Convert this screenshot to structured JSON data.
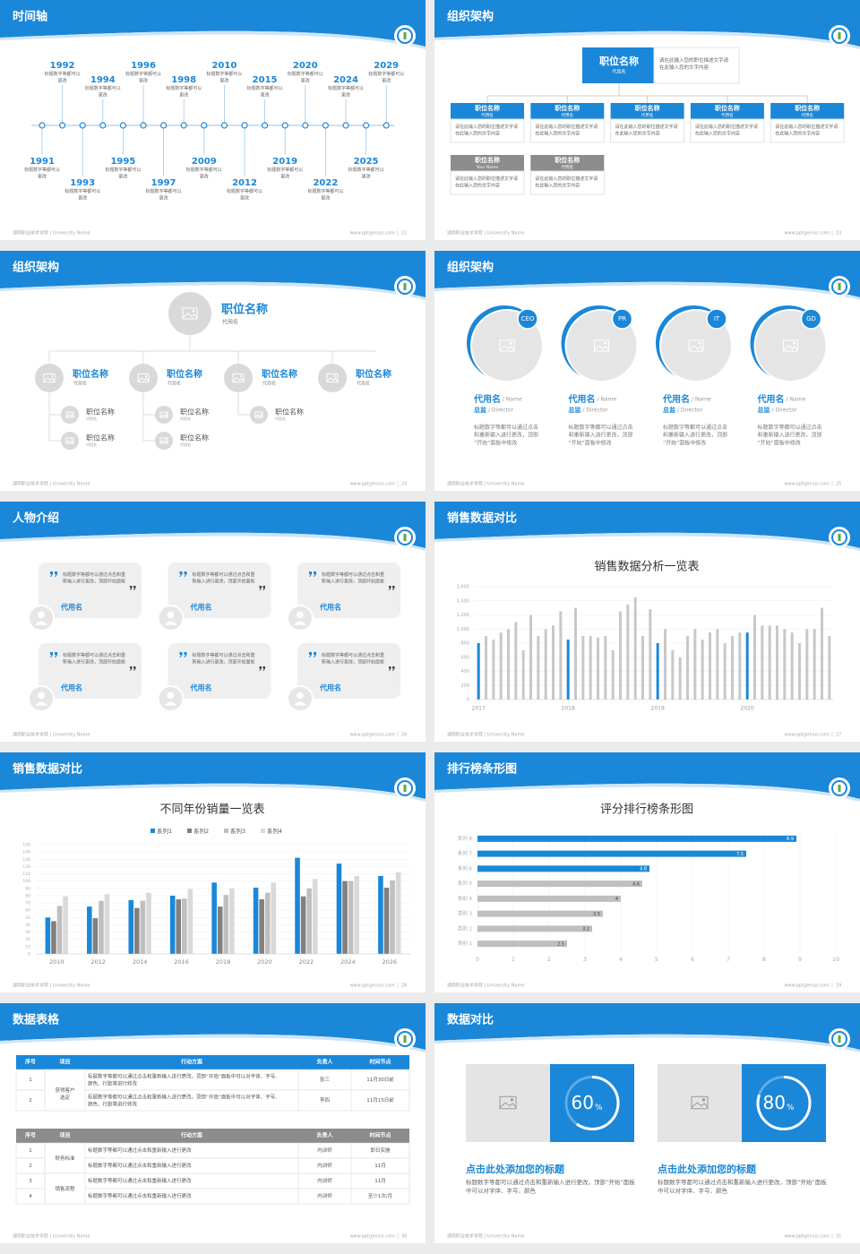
{
  "footer": {
    "school": "湖南职业技术学院 | University Name",
    "site": "www.pptgenius.com"
  },
  "slides": [
    {
      "title": "时间轴",
      "page": "22",
      "items": [
        {
          "year": "1991",
          "text": "标题数字等都可以更改"
        },
        {
          "year": "1992",
          "text": "标题数字等都可以更改"
        },
        {
          "year": "1993",
          "text": "标题数字等都可以更改"
        },
        {
          "year": "1994",
          "text": "标题数字等都可以更改"
        },
        {
          "year": "1995",
          "text": "标题数字等都可以更改"
        },
        {
          "year": "1996",
          "text": "标题数字等都可以更改"
        },
        {
          "year": "1997",
          "text": "标题数字等都可以更改"
        },
        {
          "year": "1998",
          "text": "标题数字等都可以更改"
        },
        {
          "year": "2009",
          "text": "标题数字等都可以更改"
        },
        {
          "year": "2010",
          "text": "标题数字等都可以更改"
        },
        {
          "year": "2012",
          "text": "标题数字等都可以更改"
        },
        {
          "year": "2015",
          "text": "标题数字等都可以更改"
        },
        {
          "year": "2019",
          "text": "标题数字等都可以更改"
        },
        {
          "year": "2020",
          "text": "标题数字等都可以更改"
        },
        {
          "year": "2022",
          "text": "标题数字等都可以更改"
        },
        {
          "year": "2024",
          "text": "标题数字等都可以更改"
        },
        {
          "year": "2025",
          "text": "标题数字等都可以更改"
        },
        {
          "year": "2029",
          "text": "标题数字等都可以更改"
        }
      ]
    },
    {
      "title": "组织架构",
      "page": "23",
      "top": {
        "title": "职位名称",
        "sub": "代用名",
        "desc": "请在此输入您的职位描述文字请在此输入您的文字内容"
      },
      "boxes": [
        {
          "title": "职位名称",
          "sub": "代用名",
          "desc": "请在此输入您的职位描述文字请在此输入您的文字内容",
          "color": "#1a87d9"
        },
        {
          "title": "职位名称",
          "sub": "代用名",
          "desc": "请在此输入您的职位描述文字请在此输入您的文字内容",
          "color": "#1a87d9"
        },
        {
          "title": "职位名称",
          "sub": "代用名",
          "desc": "请在此输入您的职位描述文字请在此输入您的文字内容",
          "color": "#1a87d9"
        },
        {
          "title": "职位名称",
          "sub": "代用名",
          "desc": "请在此输入您的职位描述文字请在此输入您的文字内容",
          "color": "#1a87d9"
        },
        {
          "title": "职位名称",
          "sub": "代用名",
          "desc": "请在此输入您的职位描述文字请在此输入您的文字内容",
          "color": "#1a87d9"
        },
        {
          "title": "职位名称",
          "sub": "Your Name",
          "desc": "请在此输入您的职位描述文字请在此输入您的文字内容",
          "color": "#8c8c8c"
        },
        {
          "title": "职位名称",
          "sub": "代用名",
          "desc": "请在此输入您的职位描述文字请在此输入您的文字内容",
          "color": "#8c8c8c"
        }
      ]
    },
    {
      "title": "组织架构",
      "page": "24",
      "top": {
        "title": "职位名称",
        "sub": "代用名"
      },
      "items": [
        {
          "title": "职位名称",
          "sub": "代用名",
          "children": [
            {
              "title": "职位名称",
              "sub": "代用名"
            },
            {
              "title": "职位名称",
              "sub": "代用名"
            }
          ]
        },
        {
          "title": "职位名称",
          "sub": "代用名",
          "children": [
            {
              "title": "职位名称",
              "sub": "代用名"
            },
            {
              "title": "职位名称",
              "sub": "代用名"
            }
          ]
        },
        {
          "title": "职位名称",
          "sub": "代用名",
          "children": [
            {
              "title": "职位名称",
              "sub": "代用名"
            }
          ]
        },
        {
          "title": "职位名称",
          "sub": "代用名",
          "children": []
        }
      ]
    },
    {
      "title": "组织架构",
      "page": "25",
      "people": [
        {
          "badge": "CEO",
          "name": "代用名",
          "name_en": "/ Name",
          "role": "总监",
          "role_en": "/ Director",
          "desc": "标题数字等都可以通过点击和重新输入进行更改，顶部“开始”面板中修改"
        },
        {
          "badge": "PR",
          "name": "代用名",
          "name_en": "/ Name",
          "role": "总监",
          "role_en": "/ Director",
          "desc": "标题数字等都可以通过点击和重新输入进行更改，顶部“开始”面板中修改"
        },
        {
          "badge": "IT",
          "name": "代用名",
          "name_en": "/ Name",
          "role": "总监",
          "role_en": "/ Director",
          "desc": "标题数字等都可以通过点击和重新输入进行更改，顶部“开始”面板中修改"
        },
        {
          "badge": "GD",
          "name": "代用名",
          "name_en": "/ Name",
          "role": "总监",
          "role_en": "/ Director",
          "desc": "标题数字等都可以通过点击和重新输入进行更改，顶部“开始”面板中修改"
        }
      ]
    },
    {
      "title": "人物介绍",
      "page": "26",
      "cards": [
        {
          "text": "标题数字等都可以通过点击和重新输入进行更改，顶部开始面板",
          "name": "代用名"
        },
        {
          "text": "标题数字等都可以通过点击和重新输入进行更改，顶部开始面板",
          "name": "代用名"
        },
        {
          "text": "标题数字等都可以通过点击和重新输入进行更改，顶部开始面板",
          "name": "代用名"
        },
        {
          "text": "标题数字等都可以通过点击和重新输入进行更改，顶部开始面板",
          "name": "代用名"
        },
        {
          "text": "标题数字等都可以通过点击和重新输入进行更改，顶部开始面板",
          "name": "代用名"
        },
        {
          "text": "标题数字等都可以通过点击和重新输入进行更改，顶部开始面板",
          "name": "代用名"
        }
      ]
    },
    {
      "title": "销售数据对比",
      "page": "27"
    },
    {
      "title": "销售数据对比",
      "page": "28"
    },
    {
      "title": "排行榜条形图",
      "page": "29"
    },
    {
      "title": "数据表格",
      "page": "30",
      "table1": {
        "header": [
          "序号",
          "项目",
          "行动方案",
          "负责人",
          "时间节点"
        ],
        "groups": [
          {
            "name": "获得客户选定",
            "rows": [
              [
                "1",
                "标题数字等都可以通过点击和重新输入进行更改，顶部“开始”面板中可以对字体、字号、颜色、行距等进行修改",
                "张三",
                "11月30日前"
              ],
              [
                "2",
                "标题数字等都可以通过点击和重新输入进行更改，顶部“开始”面板中可以对字体、字号、颜色、行距等进行修改",
                "李四",
                "11月15日前"
              ]
            ]
          }
        ]
      },
      "table2": {
        "header": [
          "序号",
          "项目",
          "行动方案",
          "负责人",
          "时间节点"
        ],
        "groups": [
          {
            "name": "财务标准",
            "rows": [
              [
                "1",
                "标题数字等都可以通过点击和重新输入进行更改",
                "内训师",
                "即日实施"
              ],
              [
                "2",
                "标题数字等都可以通过点击和重新输入进行更改",
                "内训师",
                "11月"
              ]
            ]
          },
          {
            "name": "销售流程",
            "rows": [
              [
                "3",
                "标题数字等都可以通过点击和重新输入进行更改",
                "内训师",
                "11月"
              ],
              [
                "4",
                "标题数字等都可以通过点击和重新输入进行更改",
                "内训师",
                "至少1次/月"
              ]
            ]
          }
        ]
      }
    },
    {
      "title": "数据对比",
      "page": "31",
      "items": [
        {
          "value": 60,
          "unit": "%",
          "title": "点击此处添加您的标题",
          "text": "标题数字等都可以通过点击和重新输入进行更改，顶部“开始”面板中可以对字体、字号、颜色"
        },
        {
          "value": 80,
          "unit": "%",
          "title": "点击此处添加您的标题",
          "text": "标题数字等都可以通过点击和重新输入进行更改，顶部“开始”面板中可以对字体、字号、颜色"
        }
      ]
    }
  ],
  "chart_data": [
    {
      "type": "bar",
      "title": "销售数据分析一览表",
      "color": "#c8c8c8",
      "highlight_color": "#1a87d9",
      "categories": [
        "2017",
        null,
        null,
        null,
        null,
        null,
        null,
        null,
        null,
        null,
        null,
        null,
        "2018",
        null,
        null,
        null,
        null,
        null,
        null,
        null,
        null,
        null,
        null,
        null,
        "2019",
        null,
        null,
        null,
        null,
        null,
        null,
        null,
        null,
        null,
        null,
        null,
        "2020",
        null,
        null,
        null,
        null,
        null,
        null,
        null,
        null,
        null,
        null,
        null
      ],
      "values": [
        800,
        900,
        850,
        950,
        1000,
        1100,
        700,
        1200,
        900,
        1000,
        1050,
        1250,
        850,
        1300,
        900,
        900,
        880,
        900,
        700,
        1250,
        1350,
        1450,
        900,
        1280,
        800,
        1000,
        700,
        600,
        900,
        1000,
        850,
        950,
        1000,
        800,
        900,
        950,
        950,
        1200,
        1050,
        1050,
        1050,
        1000,
        950,
        800,
        1000,
        1000,
        1300,
        900
      ],
      "ylim": [
        0,
        1600
      ],
      "yticks": [
        0,
        200,
        400,
        600,
        800,
        {
          "value": 1000,
          "label": "1,000"
        },
        {
          "value": 1200,
          "label": "1,200"
        },
        {
          "value": 1400,
          "label": "1,400"
        },
        {
          "value": 1600,
          "label": "1,600"
        }
      ],
      "grid": true
    },
    {
      "type": "grouped_bar",
      "title": "不同年份销量一览表",
      "legend": "top",
      "categories": [
        "2010",
        "2012",
        "2014",
        "2016",
        "2018",
        "2020",
        "2022",
        "2024",
        "2026"
      ],
      "series": [
        {
          "name": "系列1",
          "color": "#1a87d9",
          "values": [
            50,
            65,
            74,
            80,
            98,
            91,
            132,
            124,
            107
          ]
        },
        {
          "name": "系列2",
          "color": "#808080",
          "values": [
            45,
            49,
            63,
            75,
            65,
            75,
            79,
            100,
            91
          ]
        },
        {
          "name": "系列3",
          "color": "#bfbfbf",
          "values": [
            66,
            73,
            73,
            76,
            81,
            84,
            90,
            100,
            101
          ]
        },
        {
          "name": "系列4",
          "color": "#d9d9d9",
          "values": [
            79,
            82,
            84,
            89,
            90,
            98,
            103,
            107,
            112
          ]
        }
      ],
      "ylim": [
        0,
        150
      ],
      "yticks": [
        0,
        10,
        20,
        30,
        40,
        50,
        60,
        70,
        80,
        90,
        100,
        110,
        120,
        130,
        140,
        150
      ],
      "grid": true
    },
    {
      "type": "hbar",
      "title": "评分排行榜条形图",
      "categories": [
        "类别 1",
        "类别 2",
        "类别 3",
        "类别 4",
        "系列 5",
        "系列 6",
        "系列 7",
        "系列 8"
      ],
      "values": [
        2.5,
        3.2,
        3.5,
        4,
        4.6,
        4.8,
        7.5,
        8.9
      ],
      "colors": [
        "#bfbfbf",
        "#bfbfbf",
        "#bfbfbf",
        "#bfbfbf",
        "#bfbfbf",
        "#1a87d9",
        "#1a87d9",
        "#1a87d9"
      ],
      "xlim": [
        0,
        10
      ],
      "xticks": [
        0,
        1,
        2,
        3,
        4,
        5,
        6,
        7,
        8,
        9,
        10
      ],
      "grid": true
    }
  ]
}
